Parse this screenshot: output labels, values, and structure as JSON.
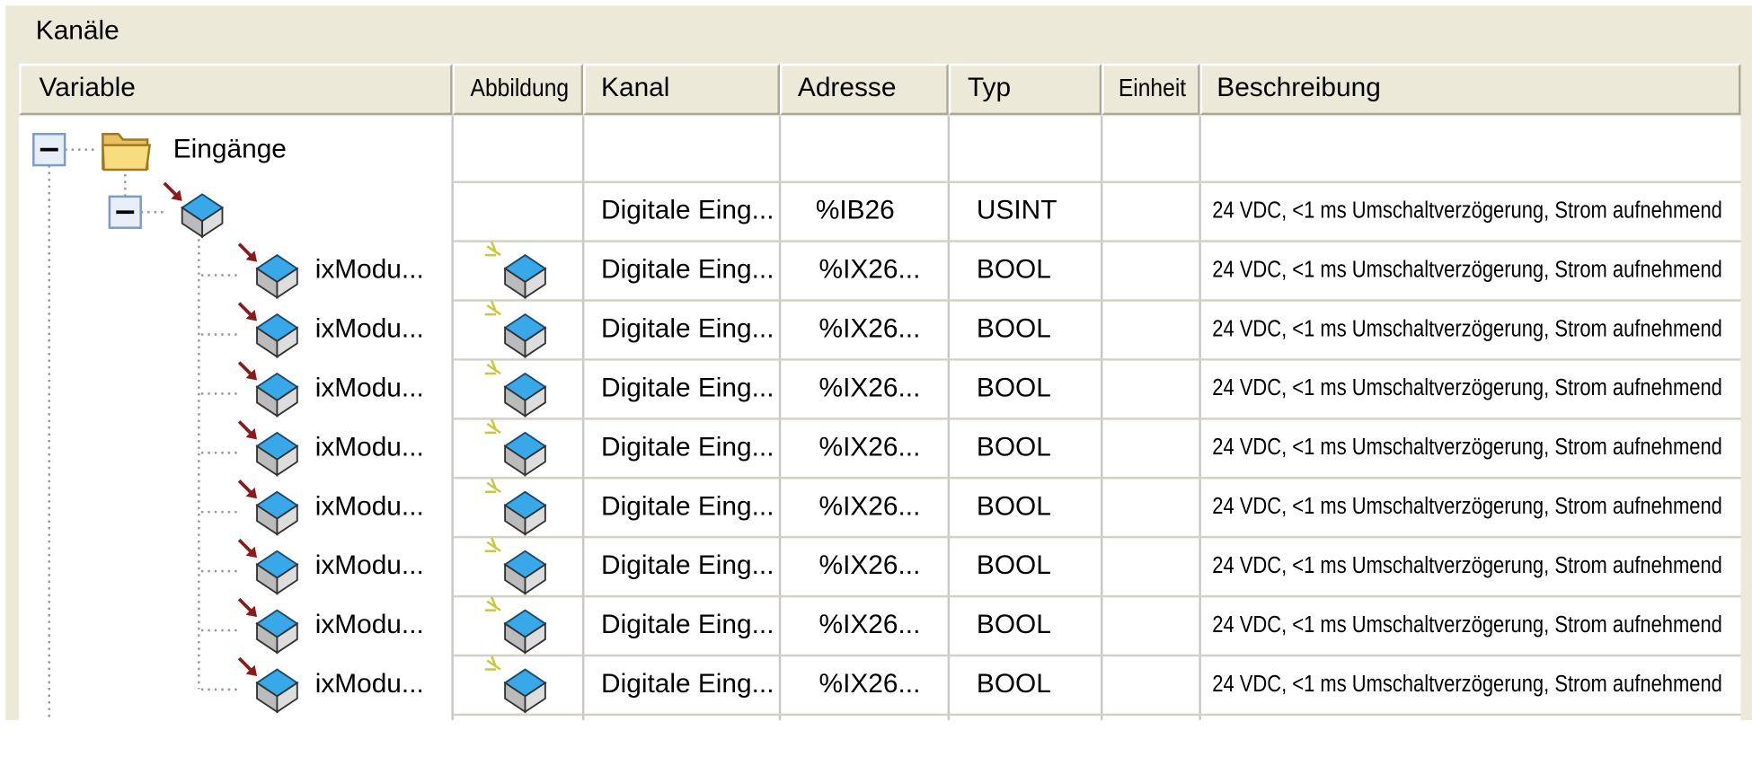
{
  "header": {
    "title": "Kanäle"
  },
  "table": {
    "columns": [
      "Variable",
      "Abbildung",
      "Kanal",
      "Adresse",
      "Typ",
      "Einheit",
      "Beschreibung"
    ],
    "rows": [
      {
        "variable": "Eingänge"
      },
      {
        "kanal": "Digitale Eing...",
        "adresse": "%IB26",
        "typ": "USINT",
        "beschreibung": "24 VDC, <1 ms Umschaltverzögerung, Strom aufnehmend"
      },
      {
        "variable": "ixModu...",
        "kanal": "Digitale Eing...",
        "adresse": "%IX26...",
        "typ": "BOOL",
        "beschreibung": "24 VDC, <1 ms Umschaltverzögerung, Strom aufnehmend"
      },
      {
        "variable": "ixModu...",
        "kanal": "Digitale Eing...",
        "adresse": "%IX26...",
        "typ": "BOOL",
        "beschreibung": "24 VDC, <1 ms Umschaltverzögerung, Strom aufnehmend"
      },
      {
        "variable": "ixModu...",
        "kanal": "Digitale Eing...",
        "adresse": "%IX26...",
        "typ": "BOOL",
        "beschreibung": "24 VDC, <1 ms Umschaltverzögerung, Strom aufnehmend"
      },
      {
        "variable": "ixModu...",
        "kanal": "Digitale Eing...",
        "adresse": "%IX26...",
        "typ": "BOOL",
        "beschreibung": "24 VDC, <1 ms Umschaltverzögerung, Strom aufnehmend"
      },
      {
        "variable": "ixModu...",
        "kanal": "Digitale Eing...",
        "adresse": "%IX26...",
        "typ": "BOOL",
        "beschreibung": "24 VDC, <1 ms Umschaltverzögerung, Strom aufnehmend"
      },
      {
        "variable": "ixModu...",
        "kanal": "Digitale Eing...",
        "adresse": "%IX26...",
        "typ": "BOOL",
        "beschreibung": "24 VDC, <1 ms Umschaltverzögerung, Strom aufnehmend"
      },
      {
        "variable": "ixModu...",
        "kanal": "Digitale Eing...",
        "adresse": "%IX26...",
        "typ": "BOOL",
        "beschreibung": "24 VDC, <1 ms Umschaltverzögerung, Strom aufnehmend"
      },
      {
        "variable": "ixModu...",
        "kanal": "Digitale Eing...",
        "adresse": "%IX26...",
        "typ": "BOOL",
        "beschreibung": "24 VDC, <1 ms Umschaltverzögerung, Strom aufnehmend"
      }
    ]
  }
}
